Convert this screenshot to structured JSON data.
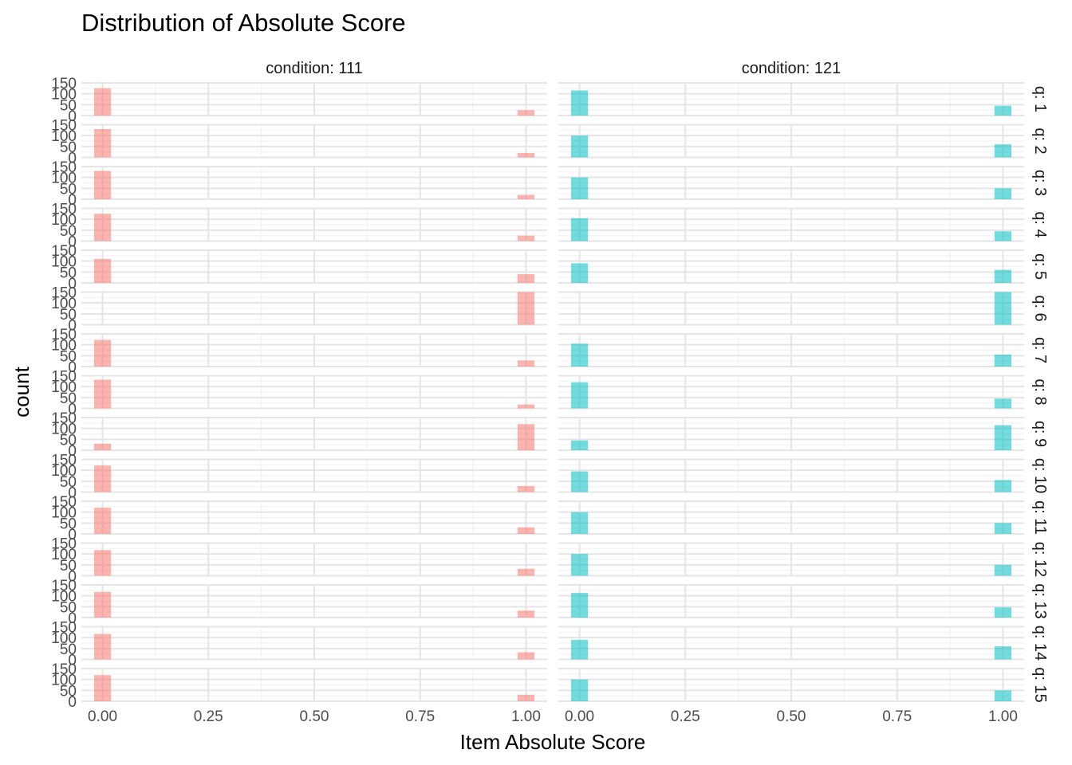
{
  "chart_data": {
    "type": "bar",
    "title": "Distribution of Absolute Score",
    "xlabel": "Item Absolute Score",
    "ylabel": "count",
    "x_ticks": [
      "0.00",
      "0.25",
      "0.50",
      "0.75",
      "1.00"
    ],
    "y_ticks": [
      "0",
      "50",
      "100",
      "150"
    ],
    "xlim": [
      -0.05,
      1.05
    ],
    "ylim": [
      0,
      150
    ],
    "grid": true,
    "column_facets": [
      {
        "label": "condition: 111",
        "color": "#F8766D"
      },
      {
        "label": "condition: 121",
        "color": "#00BFC4"
      }
    ],
    "row_facets": [
      "q: 1",
      "q: 2",
      "q: 3",
      "q: 4",
      "q: 5",
      "q: 6",
      "q: 7",
      "q: 8",
      "q: 9",
      "q: 10",
      "q: 11",
      "q: 12",
      "q: 13",
      "q: 14",
      "q: 15"
    ],
    "bar_positions": [
      0,
      1
    ],
    "counts": {
      "condition: 111": [
        [
          125,
          25
        ],
        [
          130,
          20
        ],
        [
          130,
          20
        ],
        [
          125,
          25
        ],
        [
          110,
          40
        ],
        [
          0,
          150
        ],
        [
          122,
          28
        ],
        [
          132,
          18
        ],
        [
          30,
          120
        ],
        [
          122,
          28
        ],
        [
          120,
          30
        ],
        [
          118,
          32
        ],
        [
          118,
          32
        ],
        [
          117,
          33
        ],
        [
          120,
          30
        ]
      ],
      "condition: 121": [
        [
          115,
          45
        ],
        [
          100,
          60
        ],
        [
          100,
          50
        ],
        [
          105,
          45
        ],
        [
          90,
          60
        ],
        [
          0,
          160
        ],
        [
          105,
          55
        ],
        [
          120,
          45
        ],
        [
          45,
          115
        ],
        [
          95,
          55
        ],
        [
          100,
          50
        ],
        [
          100,
          50
        ],
        [
          113,
          47
        ],
        [
          90,
          60
        ],
        [
          100,
          50
        ]
      ]
    }
  }
}
